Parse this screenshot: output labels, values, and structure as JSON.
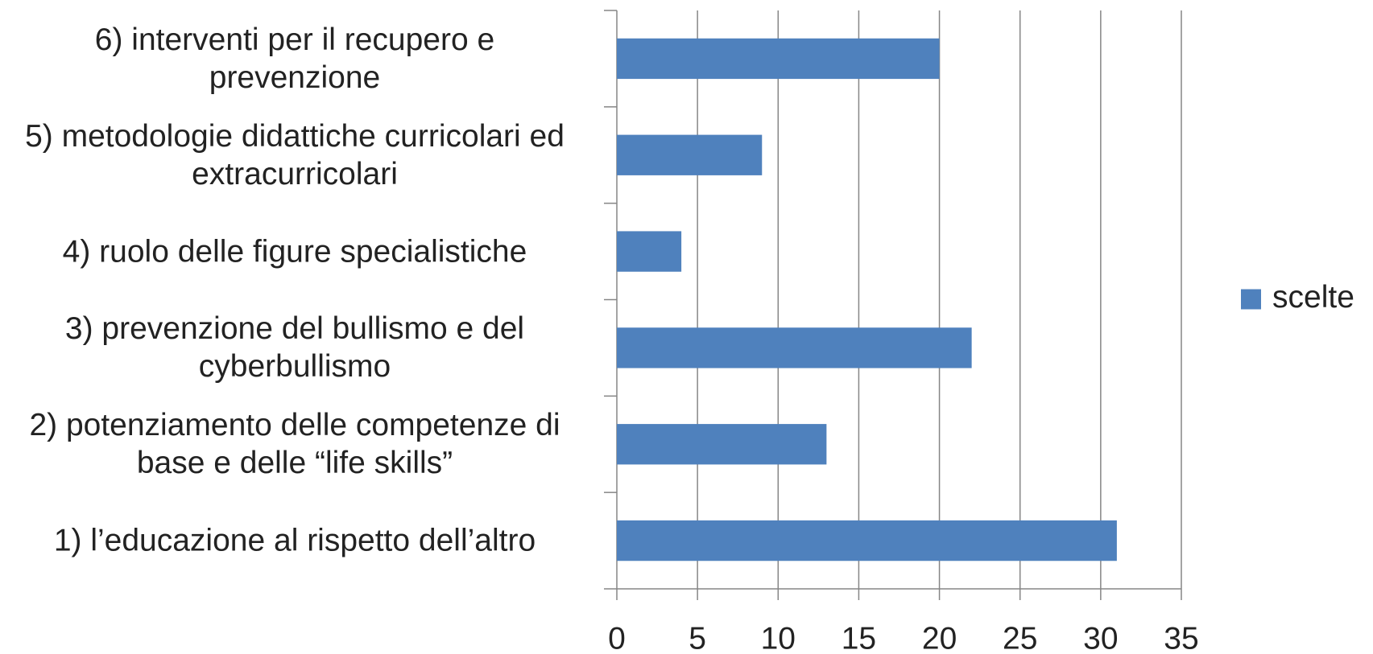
{
  "chart_data": {
    "type": "barh",
    "categories": [
      "1) l’educazione al rispetto dell’altro",
      "2) potenziamento delle competenze di base e delle “life skills”",
      "3) prevenzione del bullismo e del cyberbullismo",
      "4) ruolo delle figure specialistiche",
      "5) metodologie didattiche curricolari ed extracurricolari",
      "6) interventi per il recupero e prevenzione"
    ],
    "series": [
      {
        "name": "scelte",
        "color": "#4f81bd",
        "values": [
          31,
          13,
          22,
          4,
          9,
          20
        ]
      }
    ],
    "xlim": [
      0,
      35
    ],
    "xticks": [
      0,
      5,
      10,
      15,
      20,
      25,
      30,
      35
    ],
    "grid": true,
    "legend": "right"
  }
}
